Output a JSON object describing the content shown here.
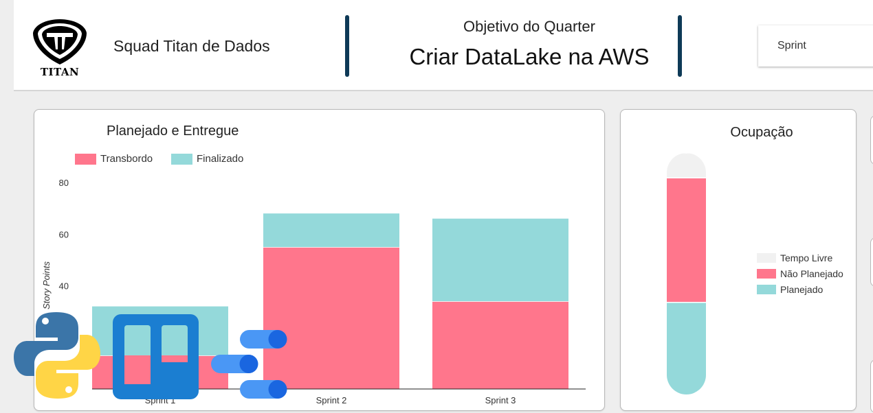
{
  "header": {
    "logo_text": "TITAN",
    "squad_name": "Squad Titan de Dados",
    "objective_label": "Objetivo do Quarter",
    "objective_title": "Criar DataLake na AWS",
    "sprint_select": {
      "value": "Sprint"
    }
  },
  "planned_card": {
    "title": "Planejado e Entregue",
    "legend": [
      {
        "label": "Transbordo",
        "color": "#ff768c"
      },
      {
        "label": "Finalizado",
        "color": "#94d9da"
      }
    ]
  },
  "occupancy_card": {
    "title": "Ocupação",
    "legend": [
      {
        "label": "Tempo Livre",
        "color": "#f1f1f1"
      },
      {
        "label": "Não Planejado",
        "color": "#ff768c"
      },
      {
        "label": "Planejado",
        "color": "#94d9da"
      }
    ]
  },
  "chart_data": [
    {
      "type": "bar",
      "stacked": true,
      "title": "Planejado e Entregue",
      "ylabel": "Story Points",
      "xlabel": "",
      "categories": [
        "Sprint 1",
        "Sprint 2",
        "Sprint 3"
      ],
      "series": [
        {
          "name": "Transbordo",
          "values": [
            13,
            55,
            34
          ],
          "color": "#ff768c"
        },
        {
          "name": "Finalizado",
          "values": [
            19,
            13,
            32
          ],
          "color": "#94d9da"
        }
      ],
      "ylim": [
        0,
        80
      ],
      "yticks": [
        80,
        60,
        40
      ],
      "legend": "top-left",
      "grid": false
    },
    {
      "type": "bar",
      "stacked": true,
      "title": "Ocupação",
      "categories": [
        ""
      ],
      "series": [
        {
          "name": "Planejado",
          "values": [
            37
          ],
          "color": "#94d9da"
        },
        {
          "name": "Não Planejado",
          "values": [
            50
          ],
          "color": "#ff768c"
        },
        {
          "name": "Tempo Livre",
          "values": [
            10
          ],
          "color": "#f1f1f1"
        }
      ],
      "ylim": [
        0,
        97
      ],
      "legend": "right",
      "grid": false
    }
  ]
}
